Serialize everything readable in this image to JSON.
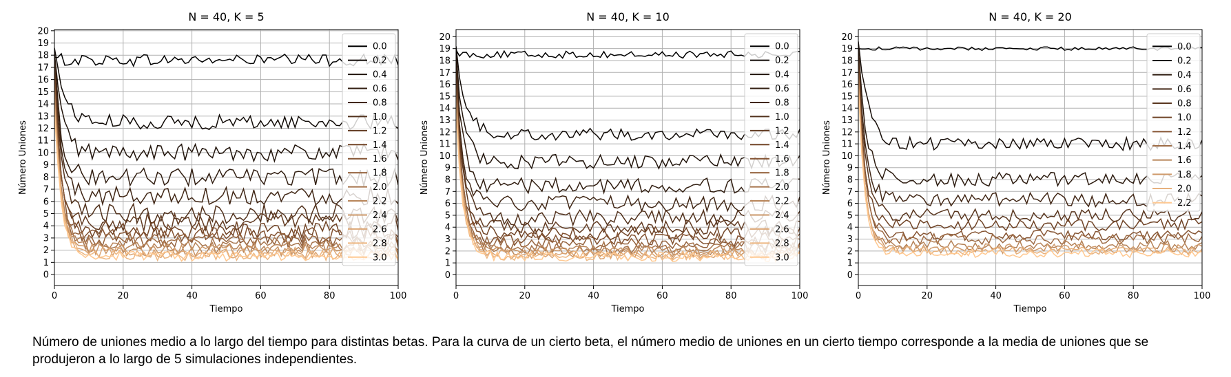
{
  "chart_data": [
    {
      "type": "line",
      "title": "N = 40, K = 5",
      "xlabel": "Tiempo",
      "ylabel": "Número Uniones",
      "xlim": [
        0,
        100
      ],
      "ylim": [
        -0.9,
        20.1
      ],
      "xticks": [
        0,
        20,
        40,
        60,
        80,
        100
      ],
      "yticks": [
        0,
        1,
        2,
        3,
        4,
        5,
        6,
        7,
        8,
        9,
        10,
        11,
        12,
        13,
        14,
        15,
        16,
        17,
        18,
        19,
        20
      ],
      "grid": true,
      "legend_position": "right",
      "series_names": [
        "0.0",
        "0.2",
        "0.4",
        "0.6",
        "0.8",
        "1.0",
        "1.2",
        "1.4",
        "1.6",
        "1.8",
        "2.0",
        "2.2",
        "2.4",
        "2.6",
        "2.8",
        "3.0"
      ],
      "start_values": [
        17.8,
        18.6,
        18.2,
        18.0,
        17.6,
        17.2,
        16.8,
        16.4,
        16.0,
        15.6,
        15.2,
        14.8,
        14.4,
        14.0,
        13.6,
        13.2
      ],
      "plateau_values": [
        17.6,
        12.5,
        10.0,
        8.0,
        6.5,
        5.0,
        4.3,
        3.7,
        3.2,
        2.8,
        2.5,
        2.2,
        2.0,
        1.8,
        1.6,
        1.5
      ],
      "noise": [
        0.5,
        0.6,
        0.7,
        0.75,
        0.8,
        0.8,
        0.75,
        0.7,
        0.65,
        0.6,
        0.55,
        0.5,
        0.5,
        0.45,
        0.45,
        0.4
      ]
    },
    {
      "type": "line",
      "title": "N = 40, K = 10",
      "xlabel": "Tiempo",
      "ylabel": "Número Uniones",
      "xlim": [
        0,
        100
      ],
      "ylim": [
        -0.9,
        20.6
      ],
      "xticks": [
        0,
        20,
        40,
        60,
        80,
        100
      ],
      "yticks": [
        0,
        1,
        2,
        3,
        4,
        5,
        6,
        7,
        8,
        9,
        10,
        11,
        12,
        13,
        14,
        15,
        16,
        17,
        18,
        19,
        20
      ],
      "grid": true,
      "legend_position": "right",
      "series_names": [
        "0.0",
        "0.2",
        "0.4",
        "0.6",
        "0.8",
        "1.0",
        "1.2",
        "1.4",
        "1.6",
        "1.8",
        "2.0",
        "2.2",
        "2.4",
        "2.6",
        "2.8",
        "3.0"
      ],
      "start_values": [
        18.9,
        19.2,
        18.8,
        18.4,
        18.0,
        17.6,
        17.2,
        16.8,
        16.4,
        16.0,
        15.6,
        15.2,
        14.8,
        14.4,
        14.0,
        13.6
      ],
      "plateau_values": [
        18.5,
        11.8,
        9.5,
        7.5,
        6.0,
        4.8,
        4.0,
        3.5,
        3.0,
        2.6,
        2.3,
        2.1,
        1.9,
        1.7,
        1.6,
        1.5
      ],
      "noise": [
        0.3,
        0.5,
        0.6,
        0.65,
        0.65,
        0.65,
        0.6,
        0.55,
        0.55,
        0.5,
        0.5,
        0.45,
        0.45,
        0.4,
        0.4,
        0.4
      ]
    },
    {
      "type": "line",
      "title": "N = 40, K = 20",
      "xlabel": "Tiempo",
      "ylabel": "Número Uniones",
      "xlim": [
        0,
        100
      ],
      "ylim": [
        -0.9,
        20.6
      ],
      "xticks": [
        0,
        20,
        40,
        60,
        80,
        100
      ],
      "yticks": [
        0,
        1,
        2,
        3,
        4,
        5,
        6,
        7,
        8,
        9,
        10,
        11,
        12,
        13,
        14,
        15,
        16,
        17,
        18,
        19,
        20
      ],
      "grid": true,
      "legend_position": "right",
      "series_names": [
        "0.0",
        "0.2",
        "0.4",
        "0.6",
        "0.8",
        "1.0",
        "1.2",
        "1.4",
        "1.6",
        "1.8",
        "2.0",
        "2.2"
      ],
      "start_values": [
        19.0,
        19.6,
        19.2,
        18.8,
        18.4,
        18.0,
        17.6,
        17.2,
        16.8,
        16.4,
        16.0,
        15.6
      ],
      "plateau_values": [
        19.0,
        11.0,
        8.0,
        6.3,
        5.0,
        4.2,
        3.3,
        3.0,
        2.5,
        2.2,
        2.0,
        1.8
      ],
      "noise": [
        0.15,
        0.55,
        0.6,
        0.6,
        0.55,
        0.5,
        0.45,
        0.45,
        0.4,
        0.4,
        0.35,
        0.35
      ]
    }
  ],
  "caption": "Número de uniones medio a lo largo del tiempo para distintas betas. Para la curva de un cierto beta, el número medio de uniones en un cierto tiempo corresponde a la media de uniones que se produjeron a lo largo de 5 simulaciones independientes.",
  "colors": {
    "series_start": "#000000",
    "series_mid": "#7a4a2a",
    "series_end": "#ffc890",
    "grid": "#b0b0b0",
    "axes": "#000000"
  }
}
